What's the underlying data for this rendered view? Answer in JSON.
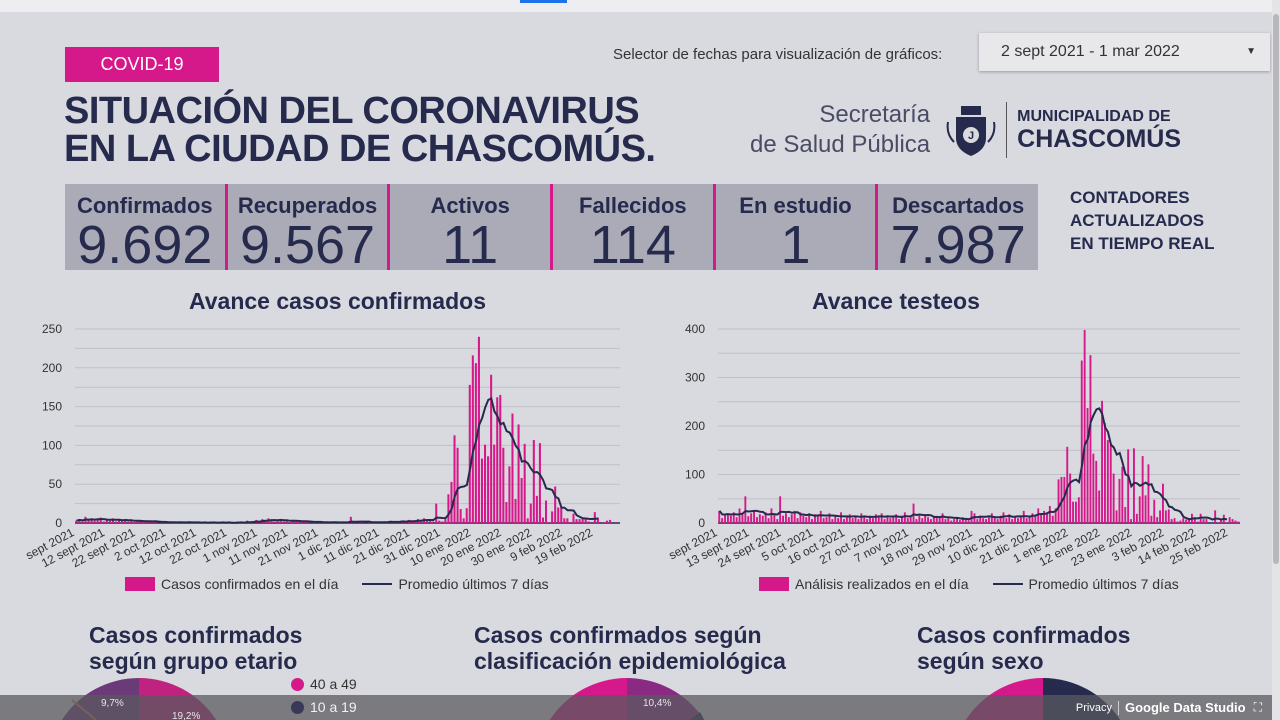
{
  "header": {
    "badge": "COVID-19",
    "title_line1": "SITUACIÓN DEL CORONAVIRUS",
    "title_line2": "EN LA CIUDAD DE CHASCOMÚS.",
    "date_selector_label": "Selector de fechas para visualización de gráficos:",
    "date_selector_value": "2 sept 2021 - 1 mar 2022",
    "secretaria_line1": "Secretaría",
    "secretaria_line2": "de Salud Pública",
    "municipalidad_line1": "MUNICIPALIDAD DE",
    "municipalidad_line2": "CHASCOMÚS"
  },
  "counters": [
    {
      "label": "Confirmados",
      "value": "9.692"
    },
    {
      "label": "Recuperados",
      "value": "9.567"
    },
    {
      "label": "Activos",
      "value": "11"
    },
    {
      "label": "Fallecidos",
      "value": "114"
    },
    {
      "label": "En estudio",
      "value": "1"
    },
    {
      "label": "Descartados",
      "value": "7.987"
    }
  ],
  "realtime_note": [
    "CONTADORES",
    "ACTUALIZADOS",
    "EN TIEMPO REAL"
  ],
  "colors": {
    "accent": "#d6198a",
    "navy": "#262a4d",
    "background": "#d9dadf"
  },
  "chart_data": [
    {
      "type": "bar",
      "title": "Avance casos confirmados",
      "start_date": "2021-09-02",
      "ylim": [
        0,
        250
      ],
      "yticks": [
        0,
        50,
        100,
        150,
        200,
        250
      ],
      "xtick_labels": [
        "sept 2021",
        "12 sept 2021",
        "22 sept 2021",
        "2 oct 2021",
        "12 oct 2021",
        "22 oct 2021",
        "1 nov 2021",
        "11 nov 2021",
        "21 nov 2021",
        "1 dic 2021",
        "11 dic 2021",
        "21 dic 2021",
        "31 dic 2021",
        "10 ene 2022",
        "20 ene 2022",
        "30 ene 2022",
        "9 feb 2022",
        "19 feb 2022"
      ],
      "grid": true,
      "legend_position": "bottom",
      "series": [
        {
          "name": "Casos confirmados en el día",
          "kind": "bar",
          "values": [
            3,
            5,
            2,
            8,
            4,
            6,
            3,
            5,
            7,
            2,
            4,
            3,
            6,
            2,
            5,
            3,
            4,
            2,
            3,
            1,
            2,
            4,
            1,
            2,
            3,
            1,
            2,
            0,
            1,
            1,
            0,
            2,
            1,
            0,
            1,
            0,
            1,
            2,
            0,
            1,
            0,
            0,
            1,
            0,
            2,
            1,
            0,
            0,
            1,
            0,
            1,
            0,
            0,
            2,
            1,
            0,
            3,
            1,
            2,
            4,
            2,
            5,
            3,
            6,
            4,
            2,
            3,
            5,
            2,
            3,
            1,
            4,
            2,
            1,
            3,
            2,
            1,
            0,
            1,
            2,
            1,
            0,
            1,
            0,
            2,
            1,
            0,
            1,
            0,
            1,
            8,
            1,
            0,
            2,
            1,
            0,
            1,
            1,
            2,
            0,
            1,
            2,
            1,
            3,
            1,
            2,
            2,
            3,
            1,
            4,
            2,
            3,
            5,
            4,
            6,
            3,
            4,
            2,
            25,
            3,
            2,
            5,
            37,
            53,
            113,
            97,
            18,
            6,
            19,
            178,
            216,
            206,
            240,
            83,
            101,
            86,
            191,
            101,
            162,
            165,
            97,
            27,
            73,
            141,
            31,
            127,
            58,
            102,
            6,
            25,
            107,
            35,
            103,
            7,
            29,
            1,
            15,
            47,
            20,
            20,
            6,
            6,
            1,
            12,
            5,
            5,
            7,
            5,
            2,
            0,
            14,
            7,
            0,
            1,
            3,
            4
          ]
        },
        {
          "name": "Promedio últimos 7 días",
          "kind": "line",
          "method": "7-day trailing average"
        }
      ]
    },
    {
      "type": "bar",
      "title": "Avance testeos",
      "start_date": "2021-09-02",
      "ylim": [
        0,
        400
      ],
      "yticks": [
        0,
        100,
        200,
        300,
        400
      ],
      "xtick_labels": [
        "sept 2021",
        "13 sept 2021",
        "24 sept 2021",
        "5 oct 2021",
        "16 oct 2021",
        "27 oct 2021",
        "7 nov 2021",
        "18 nov 2021",
        "29 nov 2021",
        "10 dic 2021",
        "21 dic 2021",
        "1 ene 2022",
        "12 ene 2022",
        "23 ene 2022",
        "3 feb 2022",
        "14 feb 2022",
        "25 feb 2022"
      ],
      "grid": true,
      "legend_position": "bottom",
      "series": [
        {
          "name": "Análisis realizados en el día",
          "kind": "bar",
          "values": [
            25,
            10,
            18,
            20,
            15,
            22,
            12,
            30,
            18,
            55,
            14,
            20,
            25,
            12,
            18,
            15,
            22,
            10,
            30,
            20,
            8,
            55,
            15,
            20,
            12,
            18,
            25,
            10,
            22,
            15,
            12,
            20,
            8,
            18,
            15,
            25,
            10,
            12,
            20,
            8,
            15,
            10,
            22,
            8,
            12,
            18,
            10,
            15,
            8,
            20,
            12,
            8,
            15,
            10,
            18,
            12,
            20,
            8,
            15,
            10,
            12,
            18,
            8,
            15,
            22,
            10,
            12,
            40,
            8,
            15,
            10,
            18,
            12,
            8,
            15,
            10,
            12,
            20,
            8,
            10,
            5,
            8,
            10,
            6,
            12,
            8,
            5,
            25,
            20,
            8,
            15,
            10,
            8,
            12,
            20,
            10,
            8,
            15,
            22,
            10,
            18,
            8,
            12,
            10,
            15,
            25,
            10,
            12,
            20,
            15,
            30,
            18,
            25,
            20,
            35,
            15,
            30,
            90,
            95,
            95,
            157,
            102,
            44,
            44,
            53,
            335,
            398,
            237,
            346,
            143,
            128,
            67,
            252,
            206,
            171,
            163,
            102,
            26,
            91,
            116,
            33,
            152,
            8,
            154,
            19,
            55,
            138,
            57,
            121,
            15,
            48,
            12,
            26,
            81,
            26,
            28,
            8,
            10,
            3,
            5,
            10,
            7,
            10,
            19,
            12,
            3,
            19,
            8,
            8,
            0,
            0,
            26,
            1,
            7,
            17,
            1,
            12,
            8,
            5,
            3
          ]
        },
        {
          "name": "Promedio últimos 7 días",
          "kind": "line",
          "method": "7-day trailing average"
        }
      ]
    }
  ],
  "sections": {
    "age": {
      "title_line1": "Casos confirmados",
      "title_line2": "según grupo etario",
      "legend": [
        {
          "label": "40 a 49",
          "color": "#d6198a"
        },
        {
          "label": "10 a 19",
          "color": "#3a3858"
        }
      ],
      "labels": [
        "9,7%",
        "19,2%"
      ]
    },
    "epi": {
      "title_line1": "Casos confirmados según",
      "title_line2": "clasificación epidemiológica",
      "labels": [
        "10,4%"
      ]
    },
    "sex": {
      "title_line1": "Casos confirmados",
      "title_line2": "según sexo"
    }
  },
  "footer": {
    "privacy": "Privacy",
    "brand": "Google Data Studio"
  }
}
